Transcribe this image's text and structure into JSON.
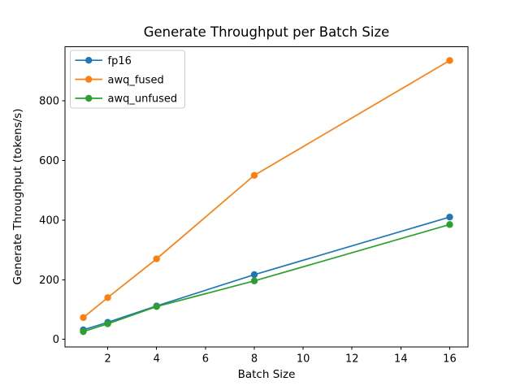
{
  "figure": {
    "background": "#ffffff"
  },
  "chart_data": {
    "type": "line",
    "title": "Generate Throughput per Batch Size",
    "xlabel": "Batch Size",
    "ylabel": "Generate Throughput (tokens/s)",
    "x": [
      1,
      2,
      4,
      8,
      16
    ],
    "series": [
      {
        "name": "fp16",
        "color": "#1f77b4",
        "values": [
          32,
          57,
          112,
          217,
          410
        ]
      },
      {
        "name": "awq_fused",
        "color": "#ff7f0e",
        "values": [
          73,
          140,
          270,
          550,
          935
        ]
      },
      {
        "name": "awq_unfused",
        "color": "#2ca02c",
        "values": [
          26,
          52,
          110,
          196,
          385
        ]
      }
    ],
    "xticks": [
      2,
      4,
      6,
      8,
      10,
      12,
      14,
      16
    ],
    "yticks": [
      0,
      200,
      400,
      600,
      800
    ],
    "xlim": [
      0.25,
      16.75
    ],
    "ylim": [
      -26,
      981
    ],
    "grid": false,
    "marker": "circle",
    "legend": {
      "position": "upper left",
      "frame": true
    },
    "axis_color": "#000000",
    "legend_border_color": "#cccccc",
    "legend_background": "#ffffff"
  }
}
